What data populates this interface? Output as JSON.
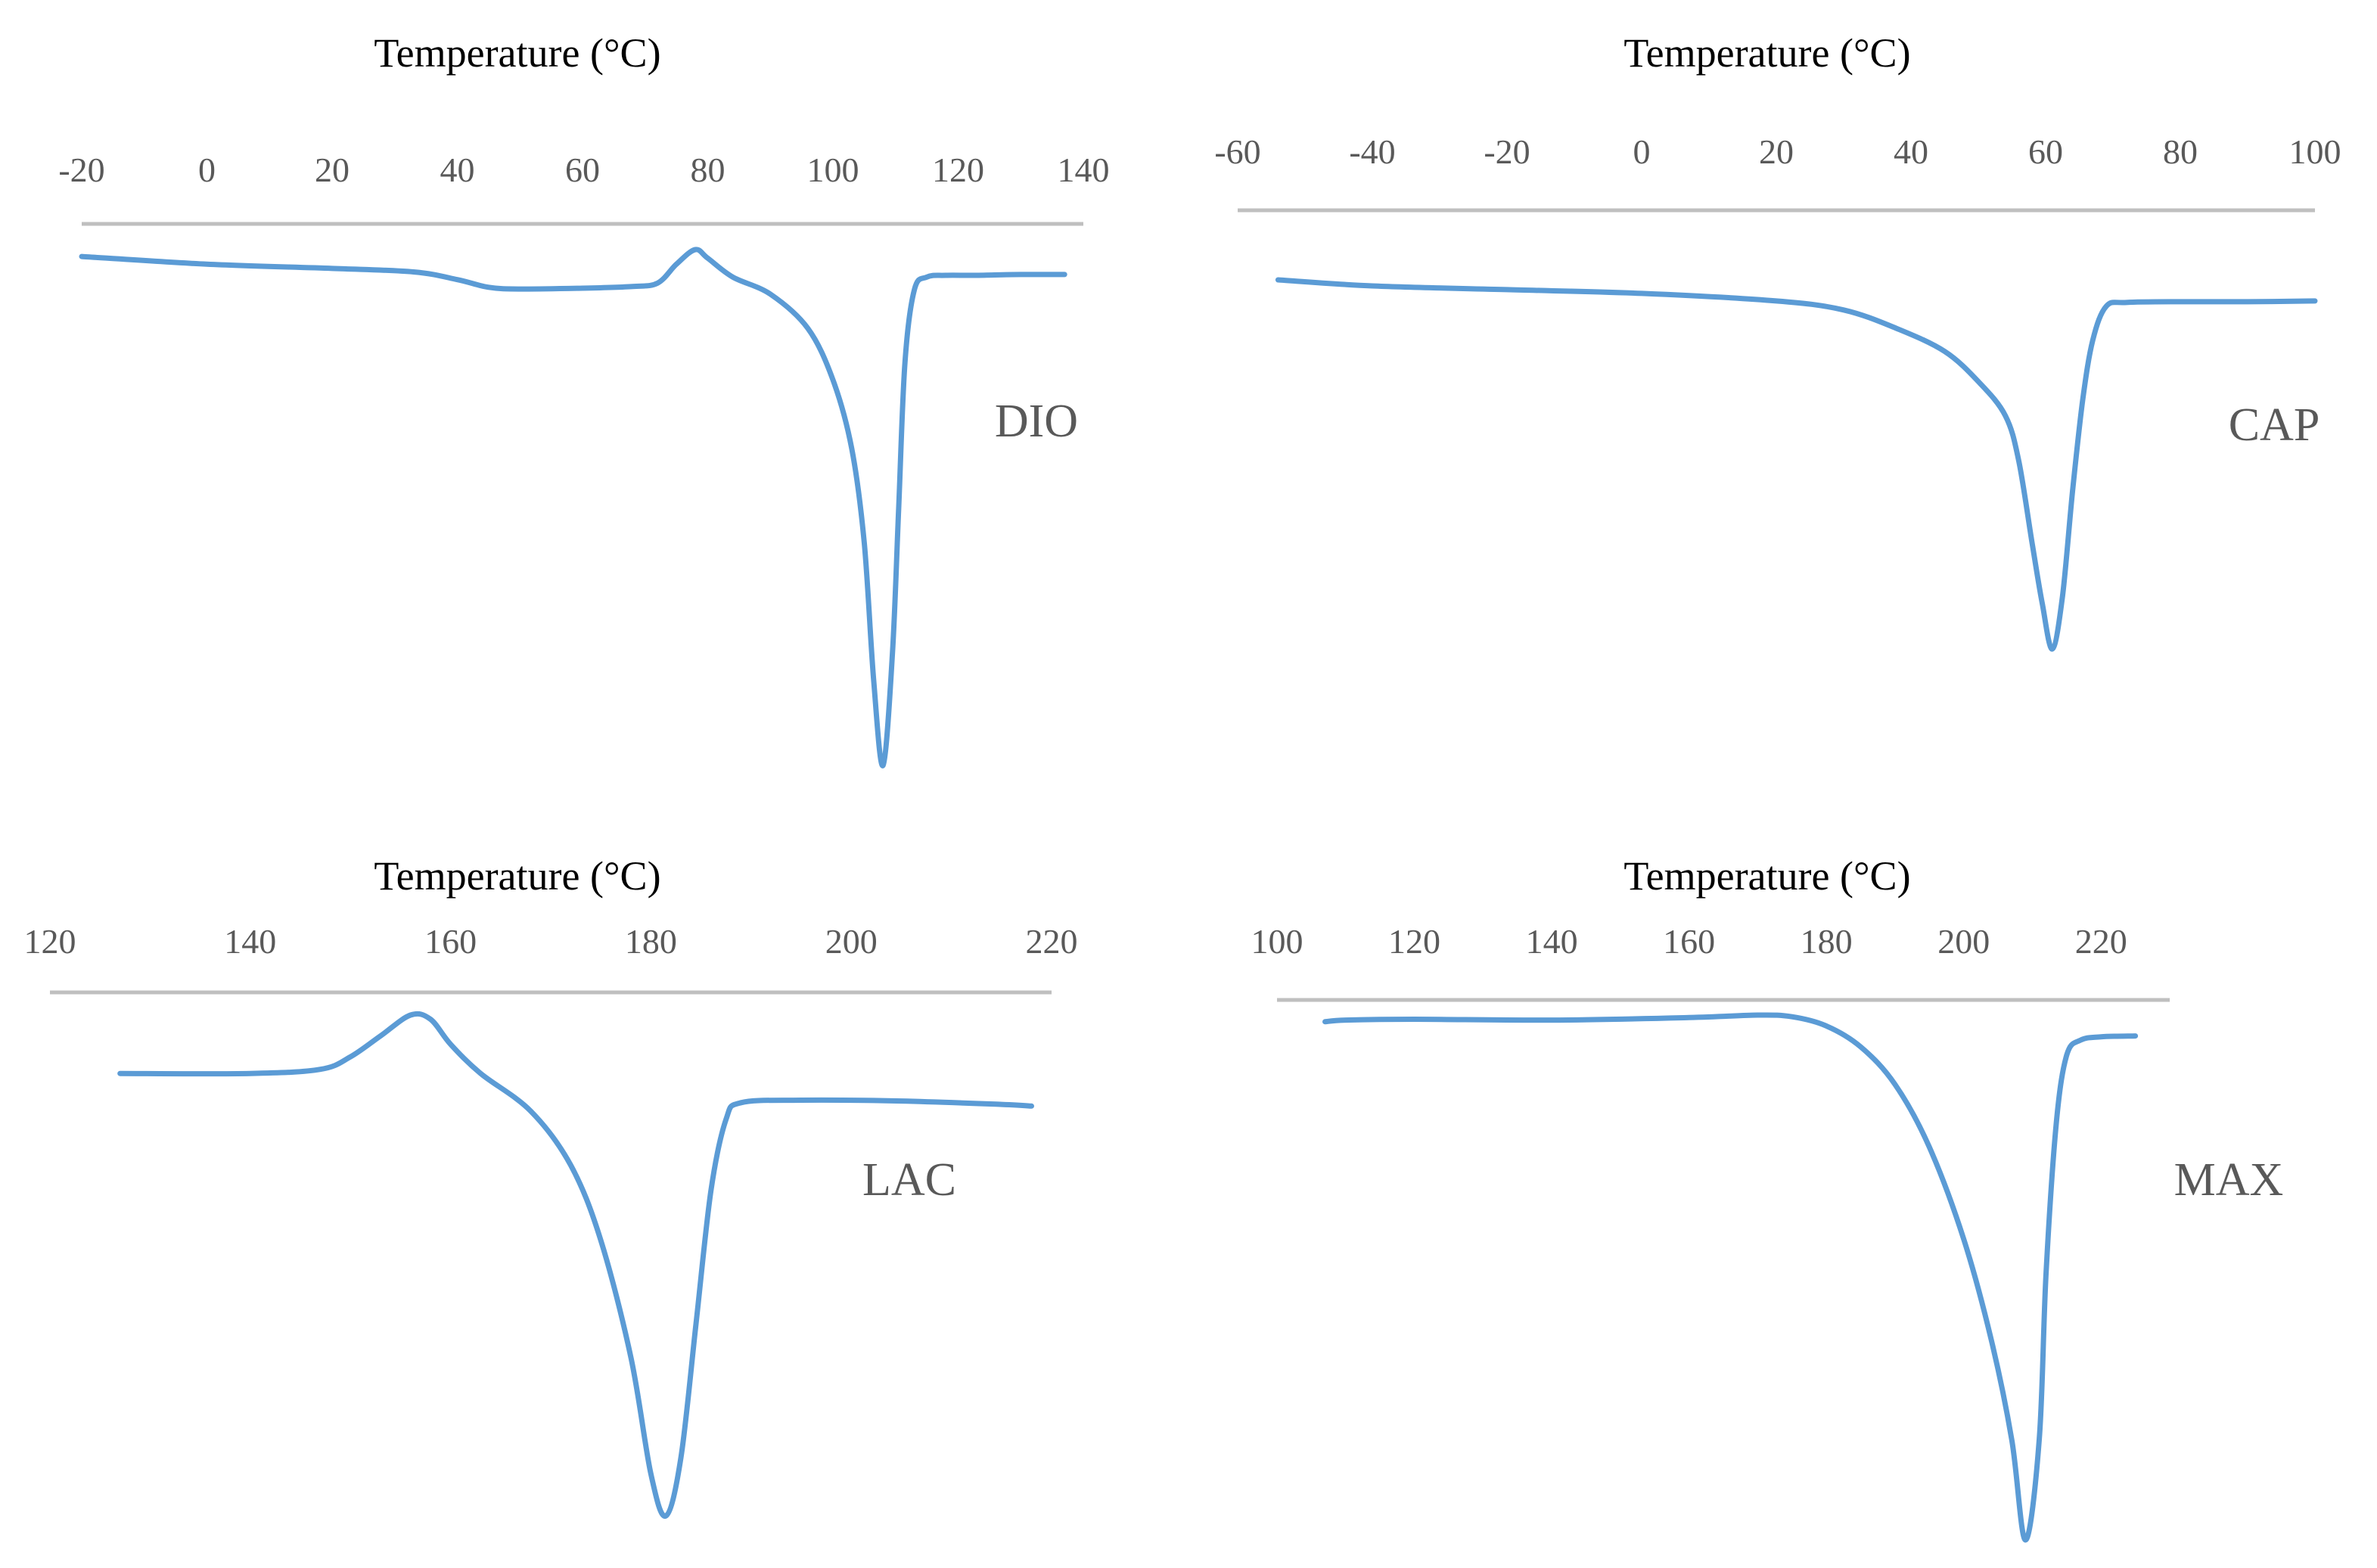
{
  "chart_data": [
    {
      "type": "line",
      "title": "",
      "xlabel": "Temperature (°C)",
      "ylabel": "",
      "series_label": "DIO",
      "color": "#5b9bd5",
      "xlim": [
        -20,
        140
      ],
      "ticks": [
        -20,
        0,
        20,
        40,
        60,
        80,
        100,
        120,
        140
      ],
      "tick_labels": [
        "-20",
        "0",
        "20",
        "40",
        "60",
        "80",
        "100",
        "120",
        "140"
      ],
      "y_units": "relative heat flow (arbitrary)",
      "series": [
        {
          "name": "DIO",
          "x": [
            -20,
            0,
            20,
            33,
            40,
            45,
            50,
            60,
            68,
            72,
            75,
            78,
            80,
            84,
            90,
            96,
            100,
            103,
            105,
            106.5,
            108,
            109.5,
            110.5,
            111.5,
            113,
            115,
            118,
            123,
            130,
            137
          ],
          "y": [
            0.14,
            0.05,
            0.0,
            -0.04,
            -0.13,
            -0.22,
            -0.24,
            -0.23,
            -0.21,
            -0.17,
            0.05,
            0.22,
            0.12,
            -0.1,
            -0.3,
            -0.7,
            -1.3,
            -2.1,
            -3.2,
            -4.8,
            -5.8,
            -4.5,
            -2.8,
            -1.1,
            -0.25,
            -0.1,
            -0.08,
            -0.08,
            -0.07,
            -0.07
          ]
        }
      ]
    },
    {
      "type": "line",
      "title": "",
      "xlabel": "Temperature (°C)",
      "ylabel": "",
      "series_label": "CAP",
      "color": "#5b9bd5",
      "xlim": [
        -60,
        100
      ],
      "ticks": [
        -60,
        -40,
        -20,
        0,
        20,
        40,
        60,
        80,
        100
      ],
      "tick_labels": [
        "-60",
        "-40",
        "-20",
        "0",
        "20",
        "40",
        "60",
        "80",
        "100"
      ],
      "y_units": "relative heat flow (arbitrary)",
      "series": [
        {
          "name": "CAP",
          "x": [
            -54,
            -40,
            -20,
            0,
            20,
            30,
            38,
            45,
            50,
            54,
            56,
            58,
            59.5,
            61,
            62.5,
            64,
            65.5,
            67,
            69,
            72,
            80,
            90,
            100
          ],
          "y": [
            0.0,
            -0.08,
            -0.13,
            -0.18,
            -0.28,
            -0.4,
            -0.65,
            -0.95,
            -1.35,
            -1.8,
            -2.4,
            -3.5,
            -4.3,
            -4.9,
            -4.2,
            -2.8,
            -1.6,
            -0.8,
            -0.35,
            -0.3,
            -0.29,
            -0.29,
            -0.28
          ]
        }
      ]
    },
    {
      "type": "line",
      "title": "",
      "xlabel": "Temperature (°C)",
      "ylabel": "",
      "series_label": "LAC",
      "color": "#5b9bd5",
      "xlim": [
        120,
        220
      ],
      "ticks": [
        120,
        140,
        160,
        180,
        200,
        220
      ],
      "tick_labels": [
        "120",
        "140",
        "160",
        "180",
        "200",
        "220"
      ],
      "y_units": "relative heat flow (arbitrary)",
      "series": [
        {
          "name": "LAC",
          "x": [
            127,
            140,
            147,
            150,
            153,
            156,
            158,
            160,
            163,
            168,
            172,
            175,
            178,
            180,
            181.5,
            183,
            184.5,
            186,
            187.5,
            189,
            195,
            205,
            215,
            218
          ],
          "y": [
            0.0,
            0.0,
            0.05,
            0.2,
            0.45,
            0.7,
            0.65,
            0.35,
            0.0,
            -0.45,
            -1.1,
            -2.0,
            -3.4,
            -4.8,
            -5.3,
            -4.6,
            -3.0,
            -1.4,
            -0.55,
            -0.35,
            -0.32,
            -0.33,
            -0.37,
            -0.39
          ]
        }
      ]
    },
    {
      "type": "line",
      "title": "",
      "xlabel": "Temperature (°C)",
      "ylabel": "",
      "series_label": "MAX",
      "color": "#5b9bd5",
      "xlim": [
        100,
        230
      ],
      "ticks": [
        100,
        120,
        140,
        160,
        180,
        200,
        220
      ],
      "tick_labels": [
        "100",
        "120",
        "140",
        "160",
        "180",
        "200",
        "220"
      ],
      "y_units": "relative heat flow (arbitrary)",
      "series": [
        {
          "name": "MAX",
          "x": [
            107,
            110,
            120,
            140,
            160,
            170,
            175,
            180,
            185,
            190,
            195,
            200,
            204,
            207,
            209,
            211,
            212,
            213.5,
            215,
            217,
            220,
            225
          ],
          "y": [
            0.0,
            0.02,
            0.03,
            0.02,
            0.05,
            0.08,
            0.06,
            -0.05,
            -0.3,
            -0.75,
            -1.5,
            -2.6,
            -3.8,
            -5.0,
            -6.2,
            -5.0,
            -3.0,
            -1.2,
            -0.4,
            -0.22,
            -0.18,
            -0.17
          ]
        }
      ]
    }
  ]
}
